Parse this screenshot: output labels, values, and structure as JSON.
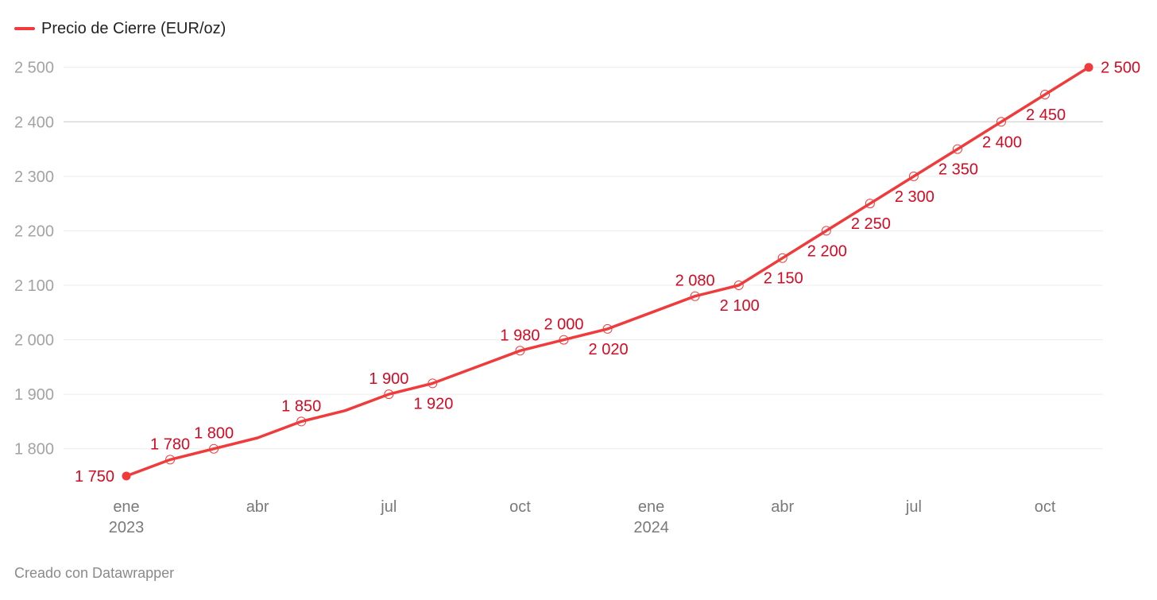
{
  "chart_data": {
    "type": "line",
    "title": "",
    "xlabel": "",
    "ylabel": "",
    "series": [
      {
        "name": "Precio de Cierre (EUR/oz)",
        "color": "#ef3b3b",
        "dates": [
          "2023-01",
          "2023-02",
          "2023-03",
          "2023-04",
          "2023-05",
          "2023-06",
          "2023-07",
          "2023-08",
          "2023-09",
          "2023-10",
          "2023-11",
          "2023-12",
          "2024-01",
          "2024-02",
          "2024-03",
          "2024-04",
          "2024-05",
          "2024-06",
          "2024-07",
          "2024-08",
          "2024-09",
          "2024-10",
          "2024-11"
        ],
        "values": [
          1750,
          1780,
          1800,
          1820,
          1850,
          1870,
          1900,
          1920,
          1950,
          1980,
          2000,
          2020,
          2050,
          2080,
          2100,
          2150,
          2200,
          2250,
          2300,
          2350,
          2400,
          2450,
          2500
        ],
        "value_labels": [
          "1 750",
          "1 780",
          "1 800",
          "",
          "1 850",
          "",
          "1 900",
          "1 920",
          "",
          "1 980",
          "2 000",
          "2 020",
          "",
          "2 080",
          "2 100",
          "2 150",
          "2 200",
          "2 250",
          "2 300",
          "2 350",
          "2 400",
          "2 450",
          "2 500"
        ]
      }
    ],
    "ylim": [
      1750,
      2500
    ],
    "y_ticks": [
      {
        "value": 1800,
        "label": "1 800"
      },
      {
        "value": 1900,
        "label": "1 900"
      },
      {
        "value": 2000,
        "label": "2 000"
      },
      {
        "value": 2100,
        "label": "2 100"
      },
      {
        "value": 2200,
        "label": "2 200"
      },
      {
        "value": 2300,
        "label": "2 300"
      },
      {
        "value": 2400,
        "label": "2 400"
      },
      {
        "value": 2500,
        "label": "2 500"
      }
    ],
    "x_ticks": [
      {
        "date": "2023-01",
        "label": "ene",
        "year": "2023"
      },
      {
        "date": "2023-04",
        "label": "abr",
        "year": ""
      },
      {
        "date": "2023-07",
        "label": "jul",
        "year": ""
      },
      {
        "date": "2023-10",
        "label": "oct",
        "year": ""
      },
      {
        "date": "2024-01",
        "label": "ene",
        "year": "2024"
      },
      {
        "date": "2024-04",
        "label": "abr",
        "year": ""
      },
      {
        "date": "2024-07",
        "label": "jul",
        "year": ""
      },
      {
        "date": "2024-10",
        "label": "oct",
        "year": ""
      }
    ],
    "grid": true,
    "legend_position": "top-left",
    "label_color": "#d50a22"
  },
  "footer": "Creado con Datawrapper"
}
